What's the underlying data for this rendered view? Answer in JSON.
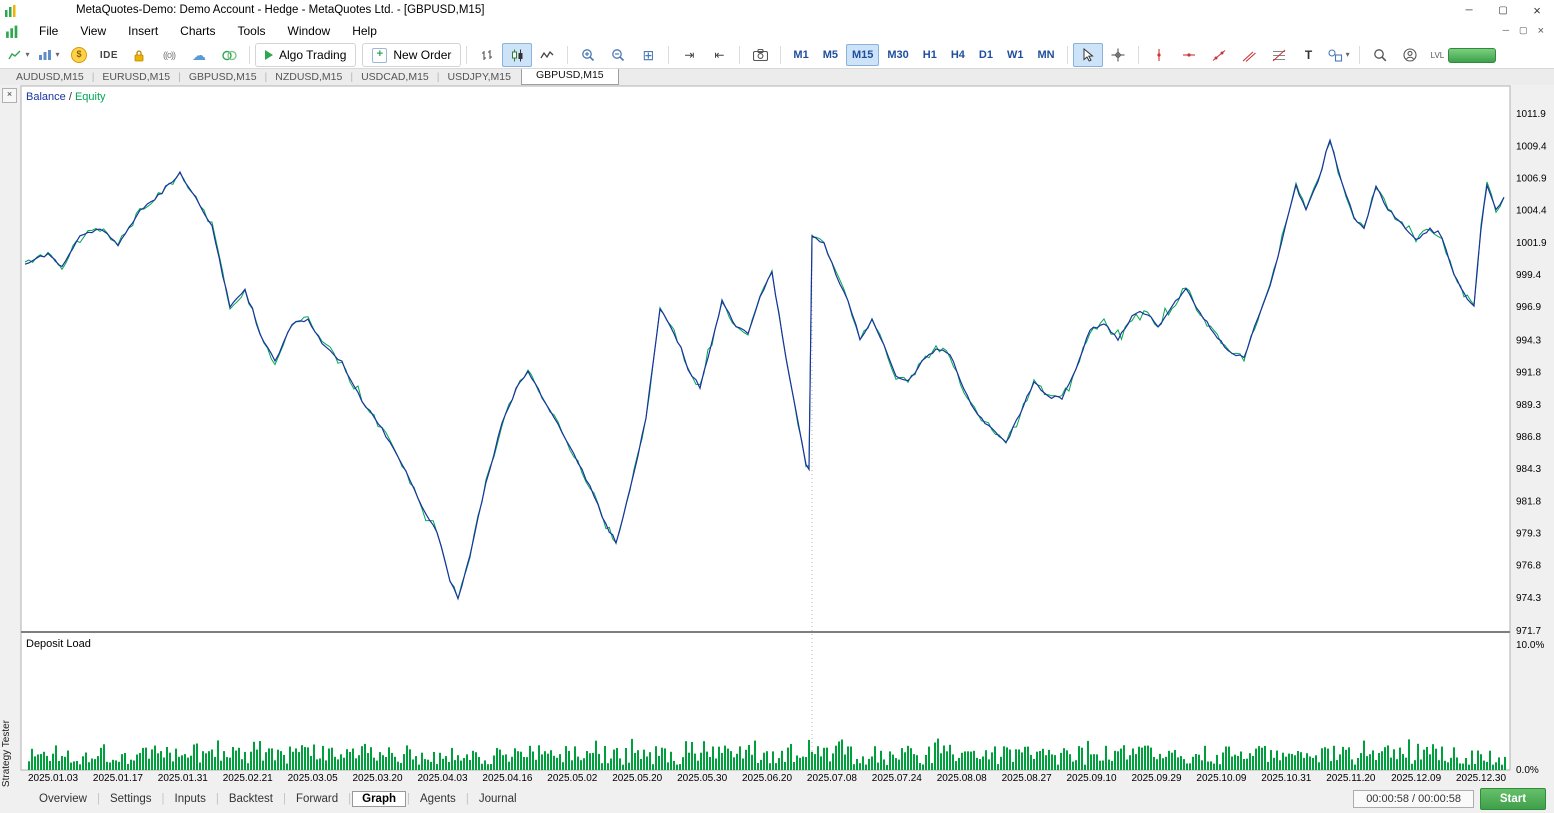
{
  "app": {
    "title": "MetaQuotes-Demo: Demo Account - Hedge - MetaQuotes Ltd. - [GBPUSD,M15]"
  },
  "icons": {
    "minimize": "─",
    "maximize": "▢",
    "close": "×",
    "dropdown": "▾",
    "dollar": "$",
    "cloud": "☁",
    "grid": "⊞",
    "autoscroll": "⇥",
    "chartshift": "⇤",
    "plus": "+",
    "signal": "((o))",
    "text_tool": "T"
  },
  "menu": {
    "items": [
      "File",
      "View",
      "Insert",
      "Charts",
      "Tools",
      "Window",
      "Help"
    ]
  },
  "toolbar": {
    "ide_label": "IDE",
    "algo_trading_label": "Algo Trading",
    "new_order_label": "New Order",
    "timeframes": [
      "M1",
      "M5",
      "M15",
      "M30",
      "H1",
      "H4",
      "D1",
      "W1",
      "MN"
    ],
    "active_timeframe": "M15",
    "lvl_label": "LVL"
  },
  "chart_tabs": {
    "items": [
      "AUDUSD,M15",
      "EURUSD,M15",
      "GBPUSD,M15",
      "NZDUSD,M15",
      "USDCAD,M15",
      "USDJPY,M15"
    ],
    "active": "GBPUSD,M15"
  },
  "tester": {
    "panel_label": "Strategy Tester",
    "tabs": [
      "Overview",
      "Settings",
      "Inputs",
      "Backtest",
      "Forward",
      "Graph",
      "Agents",
      "Journal"
    ],
    "active_tab": "Graph",
    "time_label": "00:00:58 / 00:00:58",
    "start_label": "Start"
  },
  "colors": {
    "balance": "#1a33a0",
    "equity": "#00a651",
    "deposit_bar": "#00a03c",
    "selection_bg": "#cde3f8",
    "selection_border": "#8ab2da",
    "timeframe_text": "#1f4e9c",
    "start_button": "#3f9f4a",
    "chart_border": "#b0b0b0"
  },
  "chart_data": [
    {
      "type": "line",
      "title": "Balance / Equity curve (Strategy Tester Graph)",
      "legend": {
        "balance": "Balance",
        "separator": " / ",
        "equity": "Equity"
      },
      "ylim": [
        971.7,
        1011.9
      ],
      "y_ticks": [
        "1011.9",
        "1009.4",
        "1006.9",
        "1004.4",
        "1001.9",
        "999.4",
        "996.9",
        "994.3",
        "991.8",
        "989.3",
        "986.8",
        "984.3",
        "981.8",
        "979.3",
        "976.8",
        "974.3",
        "971.7"
      ],
      "x_tick_labels": [
        "2025.01.03",
        "2025.01.17",
        "2025.01.31",
        "2025.02.21",
        "2025.03.05",
        "2025.03.20",
        "2025.04.03",
        "2025.04.16",
        "2025.05.02",
        "2025.05.20",
        "2025.05.30",
        "2025.06.20",
        "2025.07.08",
        "2025.07.24",
        "2025.08.08",
        "2025.08.27",
        "2025.09.10",
        "2025.09.29",
        "2025.10.09",
        "2025.10.31",
        "2025.11.20",
        "2025.12.09",
        "2025.12.30"
      ],
      "series": [
        {
          "name": "Balance",
          "color": "#1a33a0"
        },
        {
          "name": "Equity",
          "color": "#00a651"
        }
      ],
      "plot_x_range": [
        25,
        1508
      ],
      "anchors": [
        [
          25,
          1000.2
        ],
        [
          48,
          1001.0
        ],
        [
          62,
          1000.0
        ],
        [
          80,
          1002.3
        ],
        [
          100,
          1003.0
        ],
        [
          118,
          1001.8
        ],
        [
          140,
          1004.3
        ],
        [
          162,
          1005.8
        ],
        [
          180,
          1007.3
        ],
        [
          196,
          1005.3
        ],
        [
          212,
          1003.2
        ],
        [
          230,
          996.9
        ],
        [
          245,
          998.2
        ],
        [
          260,
          994.8
        ],
        [
          275,
          992.6
        ],
        [
          292,
          995.6
        ],
        [
          308,
          995.9
        ],
        [
          322,
          994.1
        ],
        [
          342,
          992.4
        ],
        [
          362,
          989.6
        ],
        [
          382,
          987.4
        ],
        [
          402,
          984.7
        ],
        [
          422,
          981.4
        ],
        [
          437,
          979.4
        ],
        [
          450,
          975.6
        ],
        [
          458,
          974.2
        ],
        [
          470,
          977.6
        ],
        [
          486,
          983.2
        ],
        [
          502,
          987.8
        ],
        [
          516,
          990.6
        ],
        [
          528,
          991.9
        ],
        [
          542,
          989.9
        ],
        [
          558,
          987.8
        ],
        [
          574,
          985.4
        ],
        [
          590,
          982.9
        ],
        [
          606,
          979.9
        ],
        [
          616,
          978.4
        ],
        [
          630,
          982.6
        ],
        [
          646,
          988.2
        ],
        [
          660,
          996.8
        ],
        [
          674,
          994.9
        ],
        [
          688,
          992.1
        ],
        [
          700,
          990.6
        ],
        [
          712,
          994.1
        ],
        [
          722,
          997.3
        ],
        [
          736,
          995.4
        ],
        [
          748,
          994.9
        ],
        [
          760,
          997.6
        ],
        [
          772,
          999.6
        ],
        [
          786,
          992.9
        ],
        [
          798,
          987.9
        ],
        [
          806,
          984.6
        ],
        [
          809,
          984.3
        ],
        [
          812,
          1002.4
        ],
        [
          824,
          1001.8
        ],
        [
          836,
          999.4
        ],
        [
          848,
          997.4
        ],
        [
          860,
          994.4
        ],
        [
          872,
          995.9
        ],
        [
          884,
          993.9
        ],
        [
          896,
          991.4
        ],
        [
          908,
          991.1
        ],
        [
          922,
          992.6
        ],
        [
          936,
          993.6
        ],
        [
          950,
          993.2
        ],
        [
          964,
          990.4
        ],
        [
          978,
          988.4
        ],
        [
          992,
          987.4
        ],
        [
          1006,
          986.3
        ],
        [
          1020,
          988.6
        ],
        [
          1034,
          991.1
        ],
        [
          1048,
          989.9
        ],
        [
          1062,
          989.8
        ],
        [
          1076,
          992.1
        ],
        [
          1090,
          995.1
        ],
        [
          1104,
          995.6
        ],
        [
          1118,
          994.4
        ],
        [
          1132,
          996.1
        ],
        [
          1144,
          996.6
        ],
        [
          1158,
          995.4
        ],
        [
          1172,
          996.9
        ],
        [
          1186,
          998.4
        ],
        [
          1200,
          996.4
        ],
        [
          1214,
          994.9
        ],
        [
          1228,
          993.4
        ],
        [
          1244,
          992.9
        ],
        [
          1258,
          996.1
        ],
        [
          1270,
          998.4
        ],
        [
          1282,
          1002.1
        ],
        [
          1296,
          1006.3
        ],
        [
          1306,
          1004.4
        ],
        [
          1318,
          1006.6
        ],
        [
          1330,
          1009.9
        ],
        [
          1342,
          1006.4
        ],
        [
          1354,
          1003.9
        ],
        [
          1364,
          1002.9
        ],
        [
          1376,
          1006.3
        ],
        [
          1388,
          1004.4
        ],
        [
          1402,
          1003.4
        ],
        [
          1416,
          1002.1
        ],
        [
          1430,
          1002.9
        ],
        [
          1442,
          1002.3
        ],
        [
          1454,
          999.4
        ],
        [
          1464,
          997.9
        ],
        [
          1474,
          996.9
        ],
        [
          1481,
          1003.1
        ],
        [
          1487,
          1006.4
        ],
        [
          1496,
          1004.4
        ],
        [
          1504,
          1005.4
        ]
      ],
      "noise_seed": 9
    },
    {
      "type": "bar",
      "title": "Deposit Load",
      "ylim": [
        0,
        10
      ],
      "y_tick_labels": [
        "10.0%",
        "0.0%"
      ],
      "bar_color": "#00a03c",
      "bar_count": 493,
      "seed": 1337
    }
  ]
}
